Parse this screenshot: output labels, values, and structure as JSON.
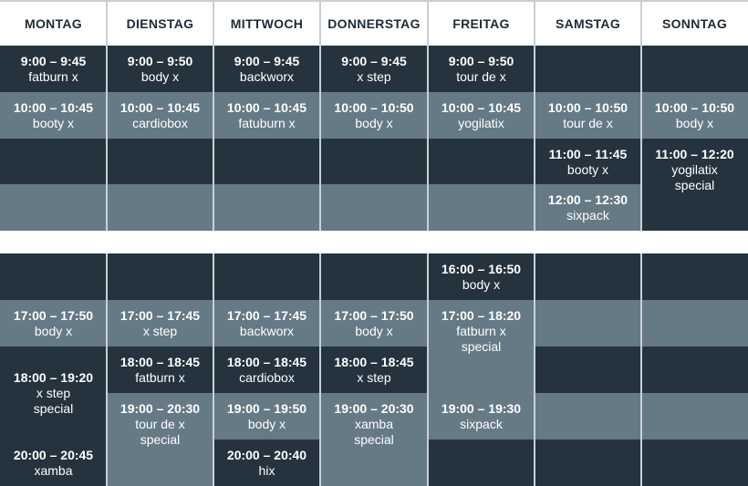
{
  "colors": {
    "dark": "#24333d",
    "light": "#657a85",
    "header_text": "#1f2b35"
  },
  "days": [
    {
      "header": "MONTAG",
      "morning": [
        {
          "shade": "dark",
          "span": 1,
          "time": "9:00 – 9:45",
          "name": "fatburn x"
        },
        {
          "shade": "light",
          "span": 1,
          "time": "10:00 – 10:45",
          "name": "booty x"
        },
        {
          "shade": "dark",
          "span": 1
        },
        {
          "shade": "light",
          "span": 1
        }
      ],
      "afternoon": [
        {
          "shade": "dark",
          "span": 1
        },
        {
          "shade": "light",
          "span": 1,
          "time": "17:00 – 17:50",
          "name": "body x"
        },
        {
          "shade": "dark",
          "span": 2,
          "time": "18:00 – 19:20",
          "name": "x step\nspecial",
          "center": true
        },
        {
          "shade": "dark",
          "span": 1,
          "time": "20:00 – 20:45",
          "name": "xamba"
        }
      ]
    },
    {
      "header": "DIENSTAG",
      "morning": [
        {
          "shade": "dark",
          "span": 1,
          "time": "9:00 – 9:50",
          "name": "body x"
        },
        {
          "shade": "light",
          "span": 1,
          "time": "10:00 – 10:45",
          "name": "cardiobox"
        },
        {
          "shade": "dark",
          "span": 1
        },
        {
          "shade": "light",
          "span": 1
        }
      ],
      "afternoon": [
        {
          "shade": "dark",
          "span": 1
        },
        {
          "shade": "light",
          "span": 1,
          "time": "17:00 – 17:45",
          "name": "x step"
        },
        {
          "shade": "dark",
          "span": 1,
          "time": "18:00 – 18:45",
          "name": "fatburn x"
        },
        {
          "shade": "light",
          "span": 2,
          "time": "19:00 – 20:30",
          "name": "tour de x\nspecial"
        }
      ]
    },
    {
      "header": "MITTWOCH",
      "morning": [
        {
          "shade": "dark",
          "span": 1,
          "time": "9:00 – 9:45",
          "name": "backworx"
        },
        {
          "shade": "light",
          "span": 1,
          "time": "10:00 – 10:45",
          "name": "fatuburn x"
        },
        {
          "shade": "dark",
          "span": 1
        },
        {
          "shade": "light",
          "span": 1
        }
      ],
      "afternoon": [
        {
          "shade": "dark",
          "span": 1
        },
        {
          "shade": "light",
          "span": 1,
          "time": "17:00 – 17:45",
          "name": "backworx"
        },
        {
          "shade": "dark",
          "span": 1,
          "time": "18:00 – 18:45",
          "name": "cardiobox"
        },
        {
          "shade": "light",
          "span": 1,
          "time": "19:00 – 19:50",
          "name": "body x"
        },
        {
          "shade": "dark",
          "span": 1,
          "time": "20:00 – 20:40",
          "name": "hix"
        }
      ]
    },
    {
      "header": "DONNERSTAG",
      "morning": [
        {
          "shade": "dark",
          "span": 1,
          "time": "9:00 – 9:45",
          "name": "x step"
        },
        {
          "shade": "light",
          "span": 1,
          "time": "10:00 – 10:50",
          "name": "body x"
        },
        {
          "shade": "dark",
          "span": 1
        },
        {
          "shade": "light",
          "span": 1
        }
      ],
      "afternoon": [
        {
          "shade": "dark",
          "span": 1
        },
        {
          "shade": "light",
          "span": 1,
          "time": "17:00 – 17:50",
          "name": "body x"
        },
        {
          "shade": "dark",
          "span": 1,
          "time": "18:00 – 18:45",
          "name": "x step"
        },
        {
          "shade": "light",
          "span": 2,
          "time": "19:00 – 20:30",
          "name": "xamba\nspecial"
        }
      ]
    },
    {
      "header": "FREITAG",
      "morning": [
        {
          "shade": "dark",
          "span": 1,
          "time": "9:00 – 9:50",
          "name": "tour de x"
        },
        {
          "shade": "light",
          "span": 1,
          "time": "10:00 – 10:45",
          "name": "yogilatix"
        },
        {
          "shade": "dark",
          "span": 1
        },
        {
          "shade": "light",
          "span": 1
        }
      ],
      "afternoon": [
        {
          "shade": "dark",
          "span": 1,
          "time": "16:00 – 16:50",
          "name": "body x"
        },
        {
          "shade": "light",
          "span": 2,
          "time": "17:00 – 18:20",
          "name": "fatburn x\nspecial"
        },
        {
          "shade": "light",
          "span": 1,
          "time": "19:00 – 19:30",
          "name": "sixpack"
        },
        {
          "shade": "dark",
          "span": 1
        }
      ]
    },
    {
      "header": "SAMSTAG",
      "morning": [
        {
          "shade": "dark",
          "span": 1
        },
        {
          "shade": "light",
          "span": 1,
          "time": "10:00 – 10:50",
          "name": "tour de x"
        },
        {
          "shade": "dark",
          "span": 1,
          "time": "11:00 – 11:45",
          "name": "booty x"
        },
        {
          "shade": "light",
          "span": 1,
          "time": "12:00 – 12:30",
          "name": "sixpack"
        }
      ],
      "afternoon": [
        {
          "shade": "dark",
          "span": 1
        },
        {
          "shade": "light",
          "span": 1
        },
        {
          "shade": "dark",
          "span": 1
        },
        {
          "shade": "light",
          "span": 1
        },
        {
          "shade": "dark",
          "span": 1
        }
      ]
    },
    {
      "header": "SONNTAG",
      "morning": [
        {
          "shade": "dark",
          "span": 1
        },
        {
          "shade": "light",
          "span": 1,
          "time": "10:00 – 10:50",
          "name": "body x"
        },
        {
          "shade": "dark",
          "span": 2,
          "time": "11:00 – 12:20",
          "name": "yogilatix\nspecial"
        }
      ],
      "afternoon": [
        {
          "shade": "dark",
          "span": 1
        },
        {
          "shade": "light",
          "span": 1
        },
        {
          "shade": "dark",
          "span": 1
        },
        {
          "shade": "light",
          "span": 1
        },
        {
          "shade": "dark",
          "span": 1
        }
      ]
    }
  ]
}
